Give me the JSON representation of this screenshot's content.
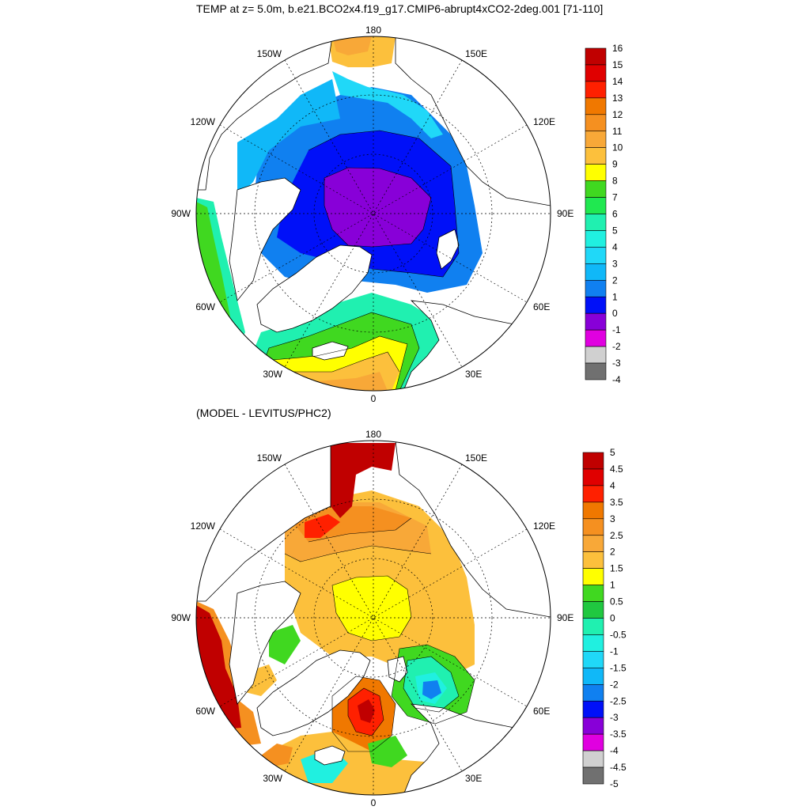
{
  "figure": {
    "title": "TEMP at z=   5.0m, b.e21.BCO2x4.f19_g17.CMIP6-abrupt4xCO2-2deg.001 [71-110]",
    "subtitle": "(MODEL - LEVITUS/PHC2)"
  },
  "maps": [
    {
      "name": "model-temperature",
      "lon_labels": {
        "top": "180",
        "bottom": "0",
        "left": "90W",
        "right": "90E",
        "upper_left": "150W",
        "upper_right": "150E",
        "mid_left": "120W",
        "mid_right": "120E",
        "lower_left": "60W",
        "lower_right": "60E",
        "bottom_left": "30W",
        "bottom_right": "30E"
      },
      "colorbar": {
        "labels": [
          "16",
          "15",
          "14",
          "13",
          "12",
          "11",
          "10",
          "9",
          "8",
          "7",
          "6",
          "5",
          "4",
          "3",
          "2",
          "1",
          "0",
          "-1",
          "-2",
          "-3",
          "-4"
        ],
        "colors": [
          "#c00000",
          "#e00000",
          "#ff2000",
          "#f07800",
          "#f59020",
          "#f8a838",
          "#fcc03c",
          "#ffff00",
          "#40d820",
          "#20e850",
          "#20f0b0",
          "#20f0e0",
          "#20d8f8",
          "#10b8f8",
          "#1080f0",
          "#0010f8",
          "#8800d8",
          "#e000e0",
          "#d0d0d0",
          "#707070"
        ]
      }
    },
    {
      "name": "model-minus-levitus",
      "lon_labels": {
        "top": "180",
        "bottom": "0",
        "left": "90W",
        "right": "90E",
        "upper_left": "150W",
        "upper_right": "150E",
        "mid_left": "120W",
        "mid_right": "120E",
        "lower_left": "60W",
        "lower_right": "60E",
        "bottom_left": "30W",
        "bottom_right": "30E"
      },
      "colorbar": {
        "labels": [
          "5",
          "4.5",
          "4",
          "3.5",
          "3",
          "2.5",
          "2",
          "1.5",
          "1",
          "0.5",
          "0",
          "-0.5",
          "-1",
          "-1.5",
          "-2",
          "-2.5",
          "-3",
          "-3.5",
          "-4",
          "-4.5",
          "-5"
        ],
        "colors": [
          "#c00000",
          "#e00000",
          "#ff2000",
          "#f07800",
          "#f59020",
          "#f8a838",
          "#fcc03c",
          "#ffff00",
          "#40d820",
          "#20c840",
          "#20f0b0",
          "#20f0e0",
          "#20d8f8",
          "#10b8f8",
          "#1080f0",
          "#0010f8",
          "#8800d8",
          "#e000e0",
          "#d0d0d0",
          "#707070"
        ]
      }
    }
  ]
}
